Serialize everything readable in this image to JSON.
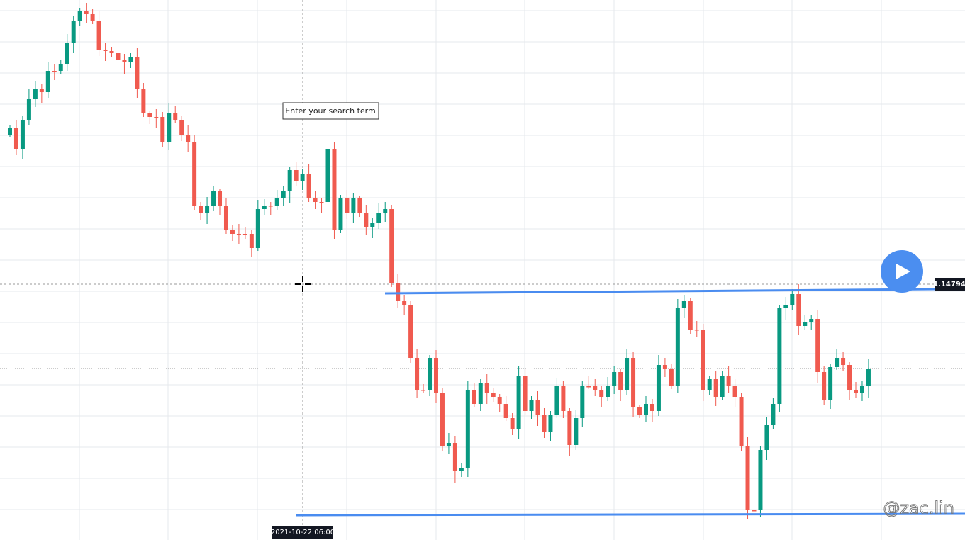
{
  "tooltip": "Enter your search term",
  "price_label": "1.14794",
  "time_label": "2021-10-22 06:00",
  "watermark": "@zac.lin"
}
